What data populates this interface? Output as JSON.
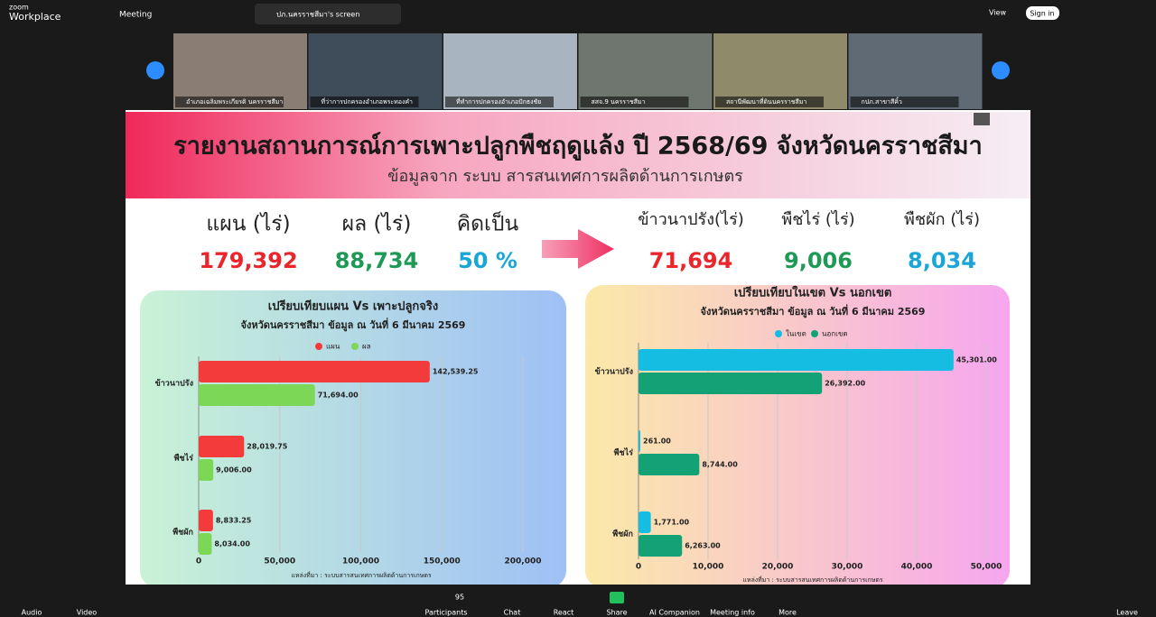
{
  "app": {
    "brand": "zoom",
    "product": "Workplace",
    "meeting": "Meeting",
    "share_tab": "ปภ.นครราชสีมา's screen",
    "view": "View",
    "sign_in": "Sign in"
  },
  "participants": [
    "อำเภอเฉลิมพระเกียรติ นครราชสีมา",
    "ที่ว่าการปกครองอำเภอพระทองคำ",
    "ที่ทำการปกครองอำเภอปักธงชัย",
    "สสจ.9 นครราชสีมา",
    "สถานีพัฒนาที่ดินนครราชสีมา",
    "กปภ.สาขาสีคิ้ว"
  ],
  "toolbar": {
    "audio": "Audio",
    "video": "Video",
    "participants": "Participants",
    "participant_count": "95",
    "chat": "Chat",
    "react": "React",
    "share": "Share",
    "ai": "AI Companion",
    "info": "Meeting info",
    "more": "More",
    "leave": "Leave"
  },
  "slide": {
    "title": "รายงานสถานการณ์การเพาะปลูกพืชฤดูแล้ง ปี 2568/69 จังหวัดนครราชสีมา",
    "subtitle": "ข้อมูลจาก ระบบ สารสนเทศการผลิตด้านการเกษตร",
    "stats": [
      {
        "label": "แผน (ไร่)",
        "value": "179,392",
        "color": "#e8262b"
      },
      {
        "label": "ผล (ไร่)",
        "value": "88,734",
        "color": "#1e9a56"
      },
      {
        "label": "คิดเป็น",
        "value": "50 %",
        "color": "#1aa6d6"
      },
      {
        "label": "ข้าวนาปรัง(ไร่)",
        "value": "71,694",
        "color": "#e8262b"
      },
      {
        "label": "พืชไร่ (ไร่)",
        "value": "9,006",
        "color": "#1e9a56"
      },
      {
        "label": "พืชผัก (ไร่)",
        "value": "8,034",
        "color": "#1aa6d6"
      }
    ]
  },
  "chart_data": [
    {
      "type": "bar",
      "orientation": "horizontal",
      "title": "เปรียบเทียบแผน Vs เพาะปลูกจริง",
      "subtitle": "จังหวัดนครราชสีมา ข้อมูล ณ วันที่ 6 มีนาคม 2569",
      "categories": [
        "ข้าวนาปรัง",
        "พืชไร่",
        "พืชผัก"
      ],
      "series": [
        {
          "name": "แผน",
          "color": "#f43b3b",
          "values": [
            142539.25,
            28019.75,
            8833.25
          ],
          "value_labels": [
            "142,539.25",
            "28,019.75",
            "8,833.25"
          ]
        },
        {
          "name": "ผล",
          "color": "#7dd756",
          "values": [
            71694,
            9006,
            8034
          ],
          "value_labels": [
            "71,694.00",
            "9,006.00",
            "8,034.00"
          ]
        }
      ],
      "xlim": [
        0,
        200000
      ],
      "xticks": [
        0,
        {
          "value": 50000,
          "label": "50,000"
        },
        {
          "value": 100000,
          "label": "100,000"
        },
        {
          "value": 150000,
          "label": "150,000"
        },
        {
          "value": 200000,
          "label": "200,000"
        }
      ],
      "grid": true,
      "source": "แหล่งที่มา : ระบบสารสนเทศการผลิตด้านการเกษตร"
    },
    {
      "type": "bar",
      "orientation": "horizontal",
      "title": "เปรียบเทียบในเขต Vs นอกเขต",
      "subtitle": "จังหวัดนครราชสีมา ข้อมูล ณ วันที่ 6 มีนาคม 2569",
      "categories": [
        "ข้าวนาปรัง",
        "พืชไร่",
        "พืชผัก"
      ],
      "series": [
        {
          "name": "ในเขต",
          "color": "#16bde3",
          "values": [
            45301,
            261,
            1771
          ],
          "value_labels": [
            "45,301.00",
            "261.00",
            "1,771.00"
          ]
        },
        {
          "name": "นอกเขต",
          "color": "#12a275",
          "values": [
            26392,
            8744,
            6263
          ],
          "value_labels": [
            "26,392.00",
            "8,744.00",
            "6,263.00"
          ]
        }
      ],
      "xlim": [
        0,
        50000
      ],
      "xticks": [
        0,
        {
          "value": 10000,
          "label": "10,000"
        },
        {
          "value": 20000,
          "label": "20,000"
        },
        {
          "value": 30000,
          "label": "30,000"
        },
        {
          "value": 40000,
          "label": "40,000"
        },
        {
          "value": 50000,
          "label": "50,000"
        }
      ],
      "grid": true,
      "source": "แหล่งที่มา : ระบบสารสนเทศการผลิตด้านการเกษตร"
    }
  ]
}
